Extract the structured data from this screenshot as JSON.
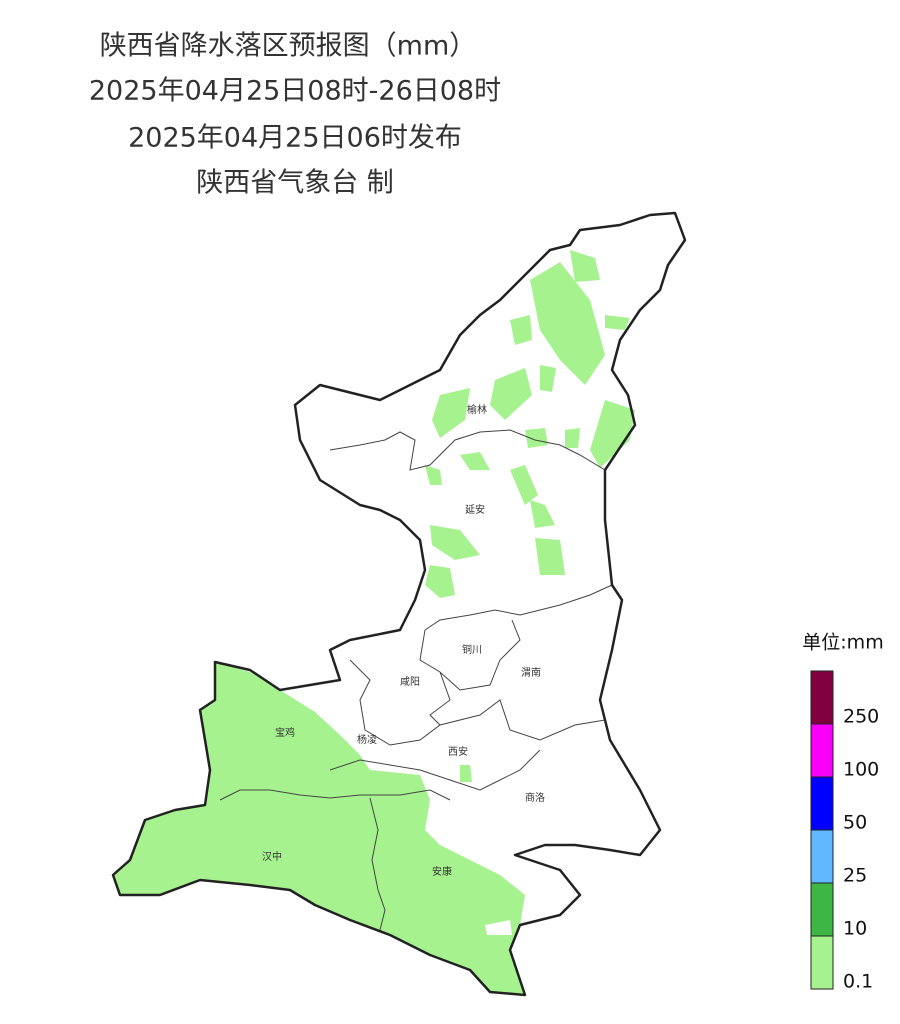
{
  "header": {
    "title": "陕西省降水落区预报图（mm）",
    "period": "2025年04月25日08时-26日08时",
    "issued": "2025年04月25日06时发布",
    "author": "陕西省气象台 制"
  },
  "cities": [
    "榆林",
    "延安",
    "铜川",
    "渭南",
    "咸阳",
    "宝鸡",
    "杨凌",
    "西安",
    "商洛",
    "汉中",
    "安康"
  ],
  "legend": {
    "title": "单位:mm",
    "entries": [
      {
        "label": "0.1",
        "color": "#a6f28f"
      },
      {
        "label": "10",
        "color": "#3db644"
      },
      {
        "label": "25",
        "color": "#61b8ff"
      },
      {
        "label": "50",
        "color": "#0000fe"
      },
      {
        "label": "100",
        "color": "#fa00fa"
      },
      {
        "label": "250",
        "color": "#800040"
      }
    ]
  }
}
